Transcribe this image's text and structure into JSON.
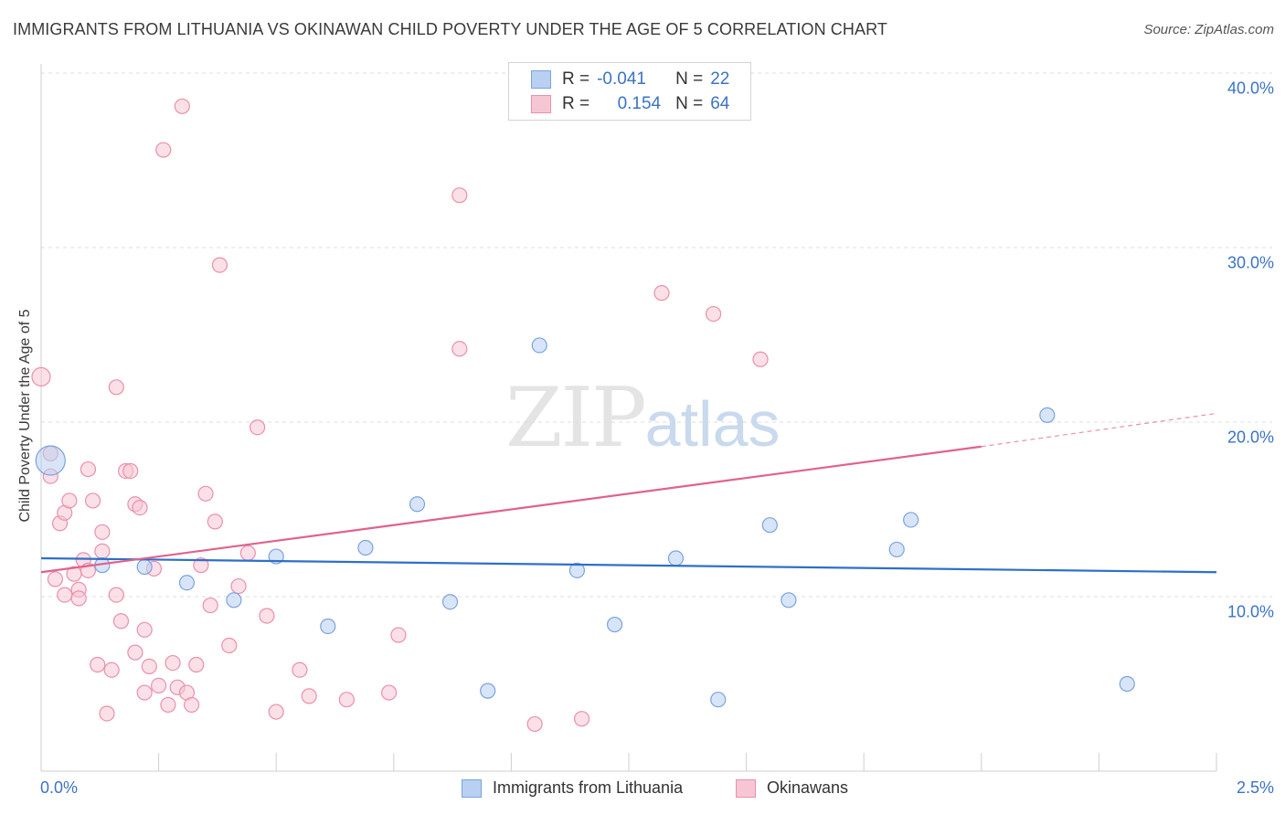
{
  "title": "IMMIGRANTS FROM LITHUANIA VS OKINAWAN CHILD POVERTY UNDER THE AGE OF 5 CORRELATION CHART",
  "source": "Source: ZipAtlas.com",
  "watermark": {
    "zip": "ZIP",
    "atlas": "atlas"
  },
  "legend": {
    "rows": [
      {
        "r_label": "R =",
        "r_value": "-0.041",
        "n_label": "N =",
        "n_value": "22"
      },
      {
        "r_label": "R =",
        "r_value": "0.154",
        "n_label": "N =",
        "n_value": "64"
      }
    ]
  },
  "colors": {
    "blue_fill": "#b8d0f2",
    "blue_stroke": "#7aa3dc",
    "blue_line": "#2f6fc9",
    "pink_fill": "#f7c6d4",
    "pink_stroke": "#e890ac",
    "pink_line": "#e0628d",
    "tick_text": "#3b73c4",
    "grid": "#dcdcdc"
  },
  "chart_data": {
    "type": "scatter",
    "title": "IMMIGRANTS FROM LITHUANIA VS OKINAWAN CHILD POVERTY UNDER THE AGE OF 5 CORRELATION CHART",
    "xlabel": "",
    "ylabel": "Child Poverty Under the Age of 5",
    "xlim": [
      0,
      2.5
    ],
    "ylim": [
      0,
      41.5
    ],
    "x_tick_labels": [
      "0.0%",
      "2.5%"
    ],
    "y_ticks": [
      10,
      20,
      30,
      40
    ],
    "y_tick_labels": [
      "10.0%",
      "20.0%",
      "30.0%",
      "40.0%"
    ],
    "grid": true,
    "legend_position": "top-center",
    "series": [
      {
        "name": "Immigrants from Lithuania",
        "color": "#b8d0f2",
        "points": [
          [
            0.02,
            17.8,
            1
          ],
          [
            0.13,
            11.8,
            0.5
          ],
          [
            0.22,
            11.7,
            0.5
          ],
          [
            0.31,
            10.8,
            0.5
          ],
          [
            0.41,
            9.8,
            0.5
          ],
          [
            0.5,
            12.3,
            0.5
          ],
          [
            0.61,
            8.3,
            0.5
          ],
          [
            0.69,
            12.8,
            0.5
          ],
          [
            0.8,
            15.3,
            0.5
          ],
          [
            0.87,
            9.7,
            0.5
          ],
          [
            0.95,
            4.6,
            0.5
          ],
          [
            1.06,
            24.4,
            0.5
          ],
          [
            1.14,
            11.5,
            0.5
          ],
          [
            1.22,
            8.4,
            0.5
          ],
          [
            1.35,
            12.2,
            0.5
          ],
          [
            1.44,
            4.1,
            0.5
          ],
          [
            1.55,
            14.1,
            0.5
          ],
          [
            1.59,
            9.8,
            0.5
          ],
          [
            1.82,
            12.7,
            0.5
          ],
          [
            1.85,
            14.4,
            0.5
          ],
          [
            2.14,
            20.4,
            0.5
          ],
          [
            2.31,
            5.0,
            0.5
          ]
        ],
        "trend": {
          "x": [
            0,
            2.5
          ],
          "y": [
            12.2,
            11.4
          ]
        }
      },
      {
        "name": "Okinawans",
        "color": "#f7c6d4",
        "points": [
          [
            0.0,
            22.6,
            0.7
          ],
          [
            0.02,
            16.9,
            0.5
          ],
          [
            0.02,
            18.2,
            0.5
          ],
          [
            0.03,
            11.0,
            0.5
          ],
          [
            0.04,
            14.2,
            0.5
          ],
          [
            0.05,
            10.1,
            0.5
          ],
          [
            0.05,
            14.8,
            0.5
          ],
          [
            0.06,
            15.5,
            0.5
          ],
          [
            0.07,
            11.3,
            0.5
          ],
          [
            0.08,
            10.4,
            0.5
          ],
          [
            0.08,
            9.9,
            0.5
          ],
          [
            0.09,
            12.1,
            0.5
          ],
          [
            0.1,
            11.5,
            0.5
          ],
          [
            0.1,
            17.3,
            0.5
          ],
          [
            0.11,
            15.5,
            0.5
          ],
          [
            0.12,
            6.1,
            0.5
          ],
          [
            0.13,
            12.6,
            0.5
          ],
          [
            0.13,
            13.7,
            0.5
          ],
          [
            0.14,
            3.3,
            0.5
          ],
          [
            0.15,
            5.8,
            0.5
          ],
          [
            0.16,
            22.0,
            0.5
          ],
          [
            0.16,
            10.1,
            0.5
          ],
          [
            0.17,
            8.6,
            0.5
          ],
          [
            0.18,
            17.2,
            0.5
          ],
          [
            0.19,
            17.2,
            0.5
          ],
          [
            0.2,
            6.8,
            0.5
          ],
          [
            0.2,
            15.3,
            0.5
          ],
          [
            0.21,
            15.1,
            0.5
          ],
          [
            0.22,
            4.5,
            0.5
          ],
          [
            0.22,
            8.1,
            0.5
          ],
          [
            0.23,
            6.0,
            0.5
          ],
          [
            0.24,
            11.6,
            0.5
          ],
          [
            0.25,
            4.9,
            0.5
          ],
          [
            0.26,
            35.6,
            0.5
          ],
          [
            0.27,
            3.8,
            0.5
          ],
          [
            0.28,
            6.2,
            0.5
          ],
          [
            0.29,
            4.8,
            0.5
          ],
          [
            0.3,
            38.1,
            0.5
          ],
          [
            0.31,
            4.5,
            0.5
          ],
          [
            0.32,
            3.8,
            0.5
          ],
          [
            0.33,
            6.1,
            0.5
          ],
          [
            0.34,
            11.8,
            0.5
          ],
          [
            0.35,
            15.9,
            0.5
          ],
          [
            0.36,
            9.5,
            0.5
          ],
          [
            0.37,
            14.3,
            0.5
          ],
          [
            0.38,
            29.0,
            0.5
          ],
          [
            0.4,
            7.2,
            0.5
          ],
          [
            0.42,
            10.6,
            0.5
          ],
          [
            0.44,
            12.5,
            0.5
          ],
          [
            0.46,
            19.7,
            0.5
          ],
          [
            0.48,
            8.9,
            0.5
          ],
          [
            0.5,
            3.4,
            0.5
          ],
          [
            0.55,
            5.8,
            0.5
          ],
          [
            0.57,
            4.3,
            0.5
          ],
          [
            0.65,
            4.1,
            0.5
          ],
          [
            0.74,
            4.5,
            0.5
          ],
          [
            0.76,
            7.8,
            0.5
          ],
          [
            0.89,
            33.0,
            0.5
          ],
          [
            0.89,
            24.2,
            0.5
          ],
          [
            1.05,
            2.7,
            0.5
          ],
          [
            1.15,
            3.0,
            0.5
          ],
          [
            1.32,
            27.4,
            0.5
          ],
          [
            1.43,
            26.2,
            0.5
          ],
          [
            1.53,
            23.6,
            0.5
          ]
        ],
        "trend": {
          "x": [
            0,
            2.0
          ],
          "y": [
            11.4,
            18.6
          ]
        },
        "trend_extension": {
          "x": [
            2.0,
            2.5
          ],
          "y": [
            18.6,
            20.5
          ]
        }
      }
    ]
  },
  "bottom_legend": {
    "blue_label": "Immigrants from Lithuania",
    "pink_label": "Okinawans"
  }
}
